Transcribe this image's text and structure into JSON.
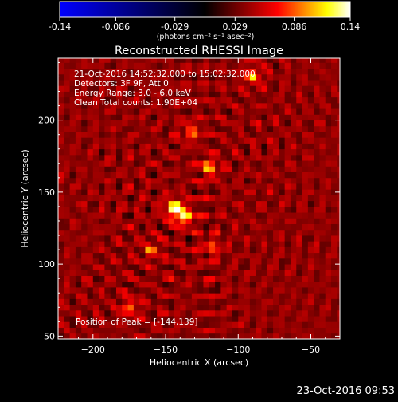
{
  "colorbar": {
    "ticks": [
      -0.14,
      -0.086,
      -0.029,
      0.029,
      0.086,
      0.14
    ],
    "tick_labels": [
      "-0.14",
      "-0.086",
      "-0.029",
      "0.029",
      "0.086",
      "0.14"
    ],
    "unit_label": "(photons cm⁻² s⁻¹ asec⁻²)",
    "colors": [
      "#0000ff",
      "#000000",
      "#ff0000",
      "#ffff00",
      "#ffffff"
    ]
  },
  "annotations": {
    "line1": "21-Oct-2016 14:52:32.000 to 15:02:32.000",
    "line2": "Detectors: 3F 9F, Att 0",
    "line3": "Energy Range: 3.0 - 6.0 keV",
    "line4": "Clean     Total counts: 1.90E+04",
    "peak": "Position of Peak = [-144,139]"
  },
  "footer": "23-Oct-2016 09:53",
  "chart_data": {
    "type": "heatmap",
    "title": "Reconstructed RHESSI Image",
    "xlabel": "Heliocentric X (arcsec)",
    "ylabel": "Heliocentric Y (arcsec)",
    "xlim": [
      -224,
      -30
    ],
    "ylim": [
      48,
      243
    ],
    "xticks": [
      -200,
      -150,
      -100,
      -50
    ],
    "yticks": [
      50,
      100,
      150,
      200
    ],
    "peak_position": [
      -144,
      139
    ],
    "sources": [
      {
        "x": -144,
        "y": 139,
        "value": 0.14
      },
      {
        "x": -137,
        "y": 133,
        "value": 0.11
      },
      {
        "x": -120,
        "y": 167,
        "value": 0.09
      },
      {
        "x": -132,
        "y": 192,
        "value": 0.07
      },
      {
        "x": -90,
        "y": 231,
        "value": 0.08
      },
      {
        "x": -175,
        "y": 70,
        "value": 0.07
      },
      {
        "x": -118,
        "y": 112,
        "value": 0.06
      },
      {
        "x": -160,
        "y": 110,
        "value": 0.06
      }
    ]
  }
}
